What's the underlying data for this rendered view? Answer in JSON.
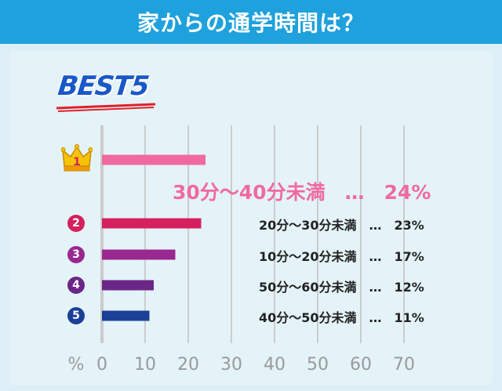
{
  "header": {
    "title": "家からの通学時間は？"
  },
  "badge": {
    "text": "BEST5"
  },
  "colors": {
    "header_bg": "#1ea1dc",
    "rank1": "#f06aa0",
    "rank2": "#d6205e",
    "rank3": "#9a2890",
    "rank4": "#6b2688",
    "rank5": "#1b3f96",
    "grid": "#cccccc",
    "axis_text": "#999999"
  },
  "chart_data": {
    "type": "bar",
    "orientation": "horizontal",
    "categories": [
      "30分～40分未満",
      "20分～30分未満",
      "10分～20分未満",
      "50分～60分未満",
      "40分～50分未満"
    ],
    "values": [
      24,
      23,
      17,
      12,
      11
    ],
    "value_labels": [
      "24%",
      "23%",
      "17%",
      "12%",
      "11%"
    ],
    "separator": "…",
    "ranks": [
      "1",
      "2",
      "3",
      "4",
      "5"
    ],
    "xlabel": "%",
    "xlim": [
      0,
      70
    ],
    "xticks": [
      "0",
      "10",
      "20",
      "30",
      "40",
      "50",
      "60",
      "70"
    ],
    "grid": true
  }
}
